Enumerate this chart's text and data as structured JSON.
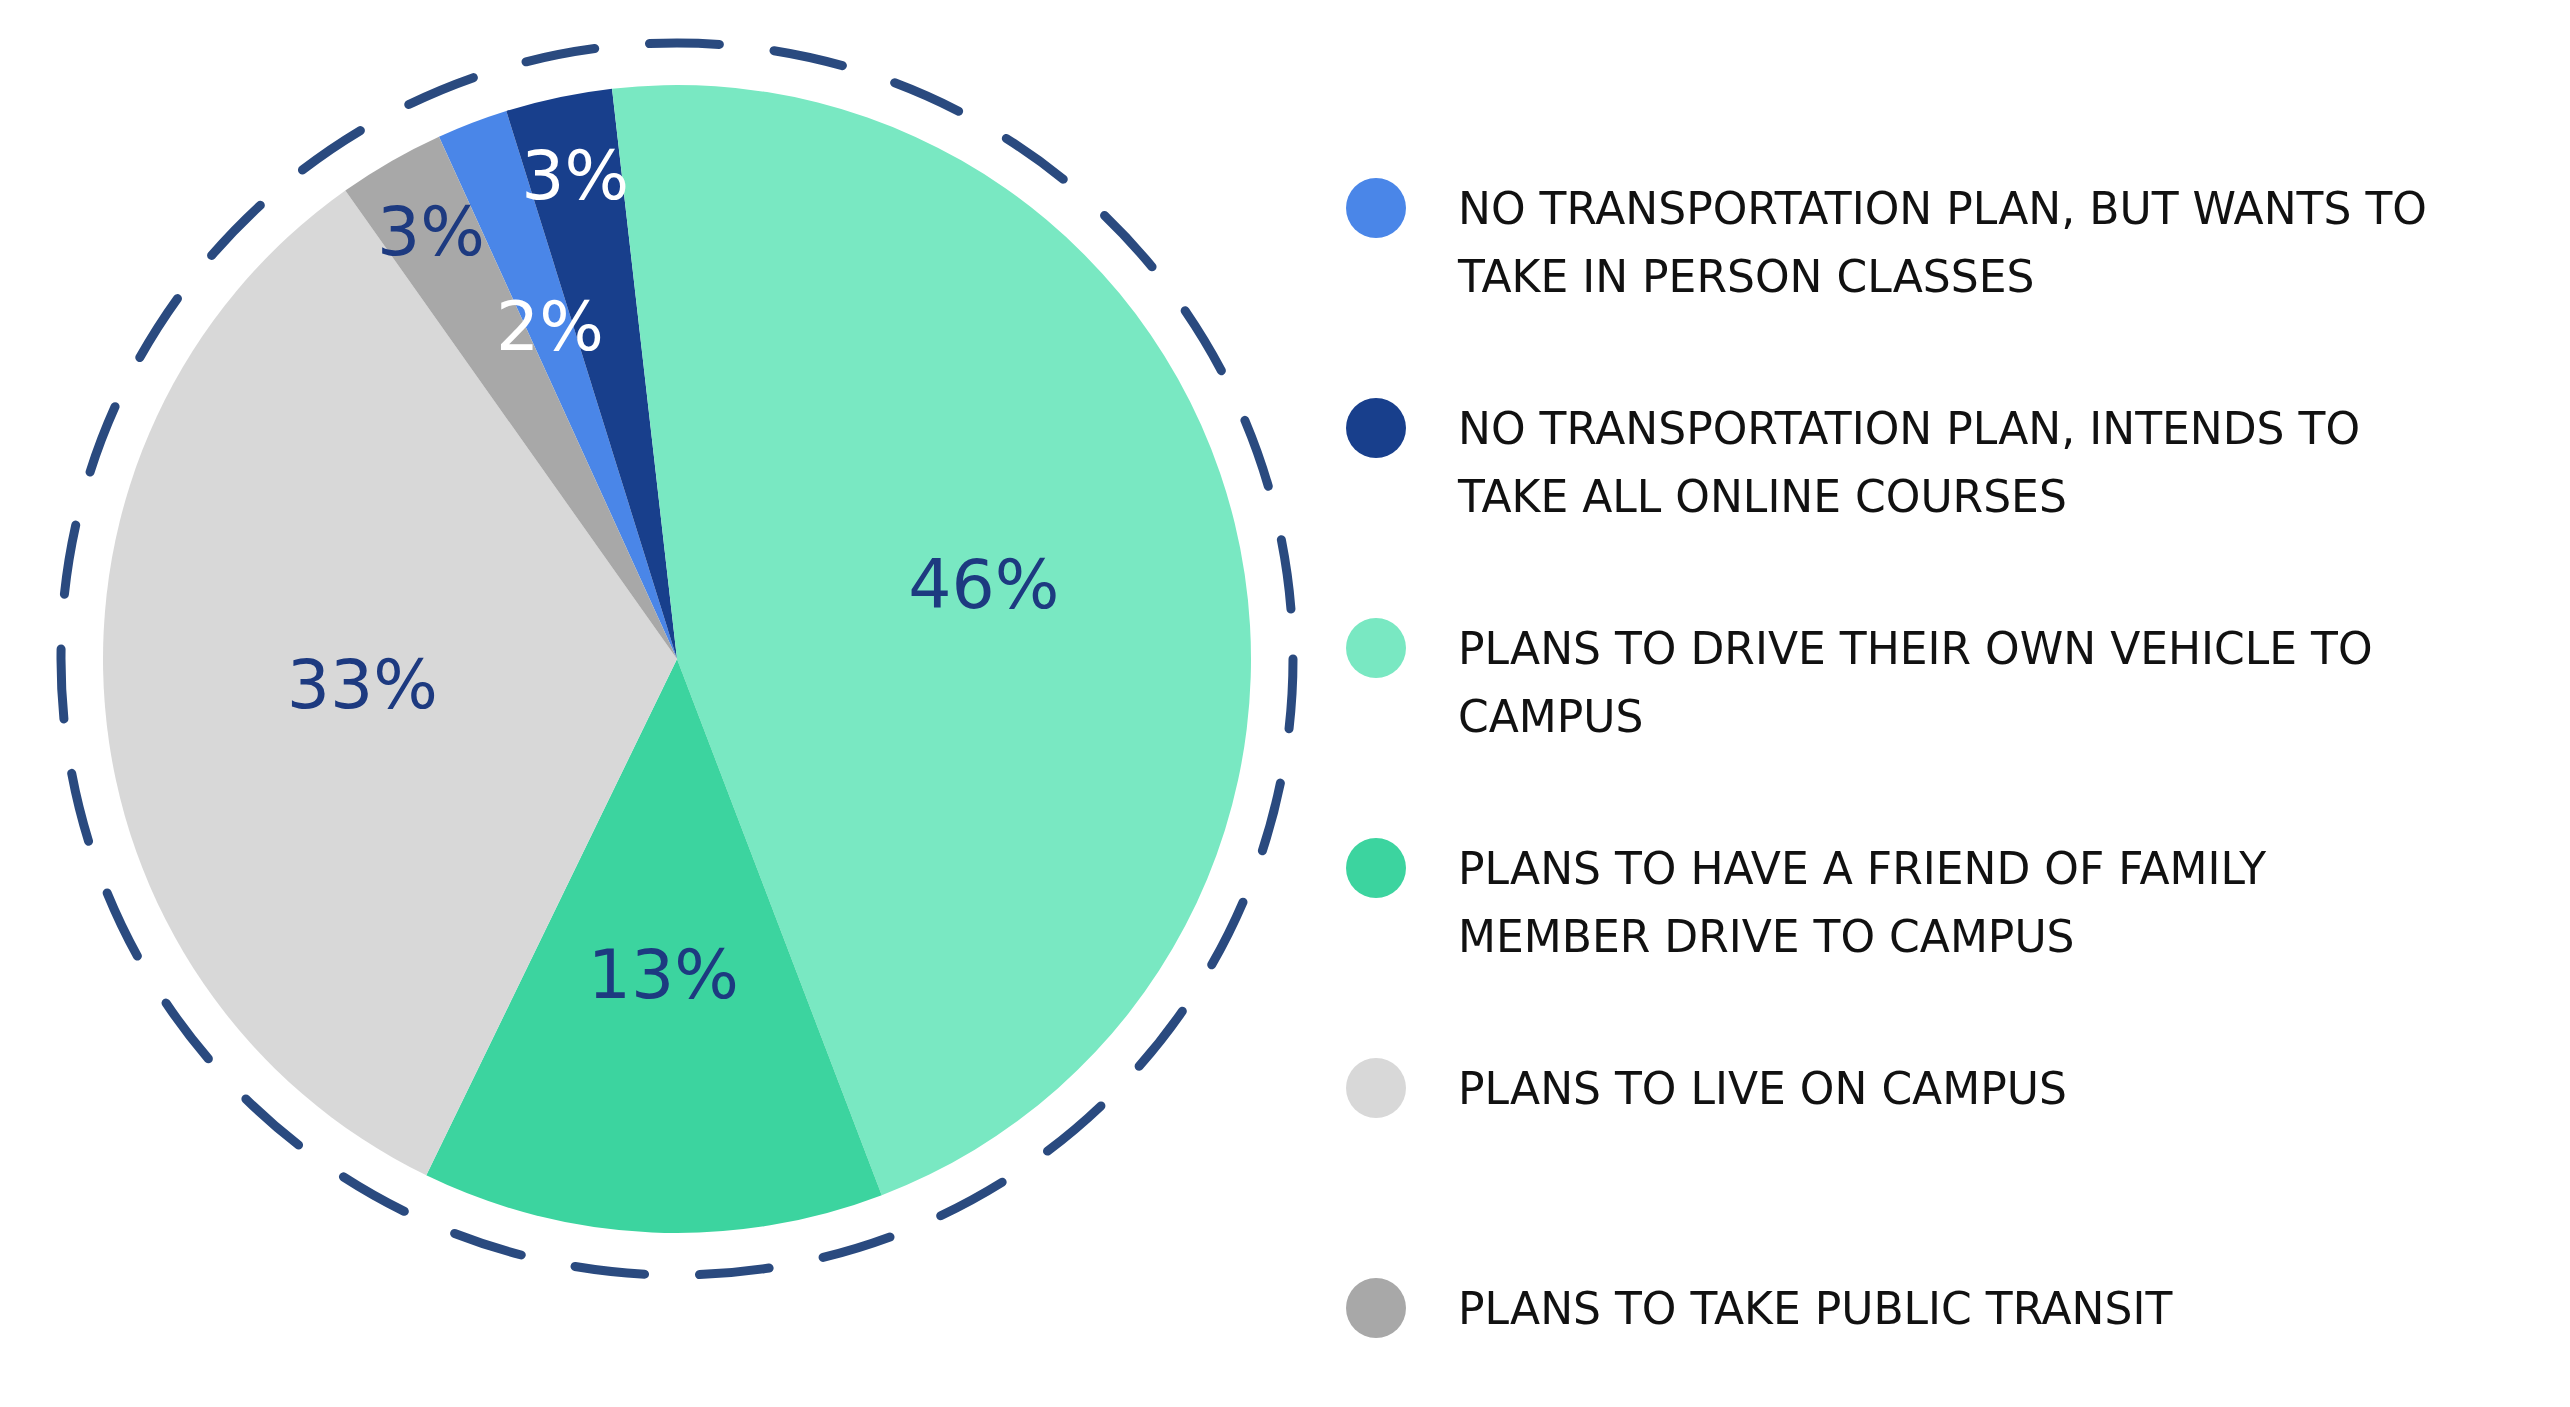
{
  "chart_data": {
    "type": "pie",
    "categories": [
      "NO TRANSPORTATION PLAN, BUT WANTS TO TAKE IN PERSON CLASSES",
      "NO TRANSPORTATION PLAN, INTENDS TO TAKE ALL ONLINE COURSES",
      "PLANS TO DRIVE THEIR OWN VEHICLE TO CAMPUS",
      "PLANS TO HAVE A FRIEND OF FAMILY MEMBER DRIVE TO CAMPUS",
      "PLANS TO LIVE ON CAMPUS",
      "PLANS TO TAKE PUBLIC TRANSIT"
    ],
    "values": [
      2,
      3,
      46,
      13,
      33,
      3
    ],
    "colors": [
      "#4a86e8",
      "#183f8c",
      "#79e8c2",
      "#3cd49f",
      "#d8d8d8",
      "#a8a8a8"
    ],
    "value_labels": [
      "2%",
      "3%",
      "46%",
      "13%",
      "33%",
      "3%"
    ],
    "legend": "right"
  }
}
